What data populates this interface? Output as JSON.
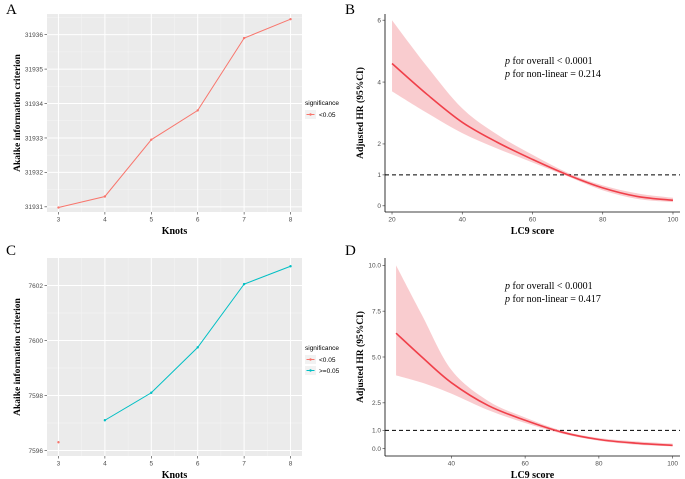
{
  "chart_data": [
    {
      "panel": "A",
      "type": "line",
      "xlabel": "Knots",
      "ylabel": "Akaike information criterion",
      "xlim": [
        3,
        8
      ],
      "ylim": [
        31930.85,
        31936.6
      ],
      "x_ticks": [
        "3",
        "4",
        "5",
        "6",
        "7",
        "8"
      ],
      "y_ticks": [
        "31931",
        "31932",
        "31933",
        "31934",
        "31935",
        "31936"
      ],
      "legend": {
        "title": "significance",
        "items": [
          {
            "label": "<0.05",
            "color": "#f8766d"
          }
        ]
      },
      "series": [
        {
          "name": "<0.05",
          "color": "#f8766d",
          "points": [
            [
              3,
              31930.98
            ],
            [
              4,
              31931.3
            ],
            [
              5,
              31932.95
            ],
            [
              6,
              31933.8
            ],
            [
              7,
              31935.9
            ],
            [
              8,
              31936.45
            ]
          ]
        }
      ]
    },
    {
      "panel": "B",
      "type": "line",
      "xlabel": "LC9 score",
      "ylabel": "Adjusted HR (95%CI)",
      "xlim": [
        18,
        102
      ],
      "ylim": [
        -0.2,
        6.2
      ],
      "x_ticks": [
        "20",
        "40",
        "60",
        "80",
        "100"
      ],
      "y_ticks": [
        "0",
        "1",
        "2",
        "4",
        "6"
      ],
      "reference_line_y": 1,
      "annotations": [
        {
          "italic": "p",
          "text": " for overall < 0.0001"
        },
        {
          "italic": "p",
          "text": " for non-linear = 0.214"
        }
      ],
      "series": [
        {
          "name": "HR",
          "color": "#f0404a",
          "x": [
            20,
            30,
            40,
            50,
            60,
            70,
            80,
            90,
            100
          ],
          "y": [
            4.6,
            3.6,
            2.7,
            2.05,
            1.5,
            1.0,
            0.58,
            0.3,
            0.18
          ],
          "ci_lower": [
            3.7,
            3.0,
            2.35,
            1.85,
            1.4,
            0.95,
            0.5,
            0.22,
            0.12
          ],
          "ci_upper": [
            6.0,
            4.5,
            3.15,
            2.3,
            1.65,
            1.07,
            0.66,
            0.4,
            0.26
          ]
        }
      ]
    },
    {
      "panel": "C",
      "type": "line",
      "xlabel": "Knots",
      "ylabel": "Akaike information criterion",
      "xlim": [
        3,
        8
      ],
      "ylim": [
        7595.8,
        7603.0
      ],
      "x_ticks": [
        "3",
        "4",
        "5",
        "6",
        "7",
        "8"
      ],
      "y_ticks": [
        "7596",
        "7598",
        "7600",
        "7602"
      ],
      "legend": {
        "title": "significance",
        "items": [
          {
            "label": "<0.05",
            "color": "#f8766d"
          },
          {
            "label": ">=0.05",
            "color": "#00bfc4"
          }
        ]
      },
      "series": [
        {
          "name": "<0.05",
          "color": "#f8766d",
          "points": [
            [
              3,
              7596.3
            ]
          ]
        },
        {
          "name": ">=0.05",
          "color": "#00bfc4",
          "points": [
            [
              4,
              7597.1
            ],
            [
              5,
              7598.1
            ],
            [
              6,
              7599.75
            ],
            [
              7,
              7602.05
            ],
            [
              8,
              7602.7
            ]
          ]
        }
      ]
    },
    {
      "panel": "D",
      "type": "line",
      "xlabel": "LC9 score",
      "ylabel": "Adjusted HR (95%CI)",
      "xlim": [
        22,
        102
      ],
      "ylim": [
        -0.4,
        10.4
      ],
      "x_ticks": [
        "40",
        "60",
        "80",
        "100"
      ],
      "y_ticks": [
        "0.0",
        "1.0",
        "2.5",
        "5.0",
        "7.5",
        "10.0"
      ],
      "reference_line_y": 1,
      "annotations": [
        {
          "italic": "p",
          "text": " for overall < 0.0001"
        },
        {
          "italic": "p",
          "text": " for non-linear = 0.417"
        }
      ],
      "series": [
        {
          "name": "HR",
          "color": "#f0404a",
          "x": [
            25,
            32,
            40,
            50,
            60,
            70,
            80,
            90,
            100
          ],
          "y": [
            6.3,
            5.0,
            3.6,
            2.35,
            1.55,
            0.9,
            0.5,
            0.3,
            0.18
          ],
          "ci_lower": [
            4.0,
            3.6,
            3.0,
            2.1,
            1.4,
            0.82,
            0.43,
            0.22,
            0.12
          ],
          "ci_upper": [
            10.0,
            7.3,
            4.3,
            2.6,
            1.7,
            0.98,
            0.58,
            0.4,
            0.28
          ]
        }
      ]
    }
  ]
}
